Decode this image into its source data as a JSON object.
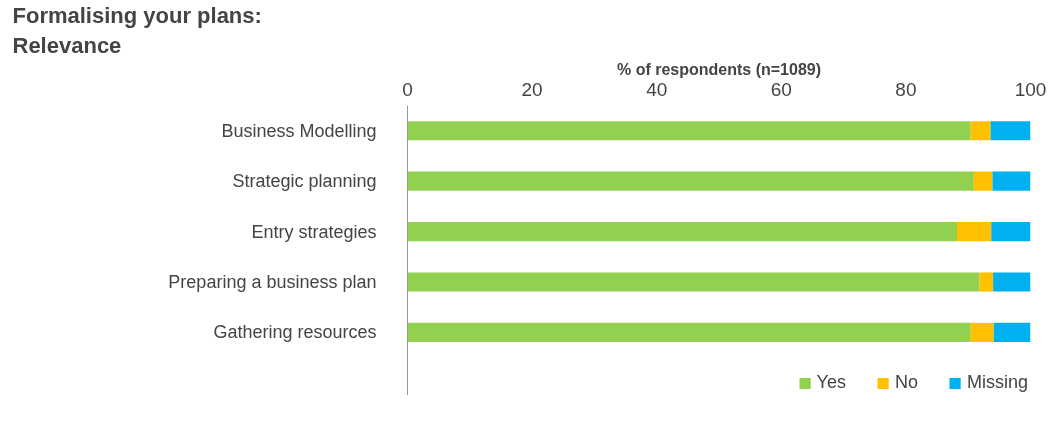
{
  "chart_data": {
    "type": "bar",
    "orientation": "horizontal",
    "stacked": true,
    "title": "Formalising your plans:\nRelevance",
    "xlabel": "% of respondents (n=1089)",
    "categories": [
      "Business Modelling",
      "Strategic planning",
      "Entry strategies",
      "Preparing a business plan",
      "Gathering resources"
    ],
    "series": [
      {
        "name": "Yes",
        "color": "#92d050",
        "values": [
          90.4,
          90.9,
          88.2,
          91.8,
          90.4
        ]
      },
      {
        "name": "No",
        "color": "#ffc000",
        "values": [
          3.2,
          3.0,
          5.5,
          2.2,
          3.7
        ]
      },
      {
        "name": "Missing",
        "color": "#00b0f0",
        "values": [
          6.4,
          6.1,
          6.3,
          6.0,
          5.9
        ]
      }
    ],
    "xlim": [
      0,
      100
    ],
    "xticks": [
      0,
      20,
      40,
      60,
      80,
      100
    ],
    "grid": false,
    "legend": "bottom right"
  }
}
